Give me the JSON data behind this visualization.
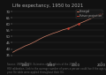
{
  "title": "Life expectancy, 1950 to 2021",
  "ylim": [
    30,
    72
  ],
  "xlim": [
    1950,
    2022
  ],
  "xticks": [
    1960,
    1980,
    2000,
    2020
  ],
  "yticks": [
    35,
    40,
    45,
    50,
    55,
    60,
    65,
    70
  ],
  "background_color": "#111111",
  "plot_bg_color": "#111111",
  "line_color": "#d4826a",
  "dot_color": "#c0392b",
  "grid_color": "#555555",
  "years": [
    1950,
    1951,
    1952,
    1953,
    1954,
    1955,
    1956,
    1957,
    1958,
    1959,
    1960,
    1961,
    1962,
    1963,
    1964,
    1965,
    1966,
    1967,
    1968,
    1969,
    1970,
    1971,
    1972,
    1973,
    1974,
    1975,
    1976,
    1977,
    1978,
    1979,
    1980,
    1981,
    1982,
    1983,
    1984,
    1985,
    1986,
    1987,
    1988,
    1989,
    1990,
    1991,
    1992,
    1993,
    1994,
    1995,
    1996,
    1997,
    1998,
    1999,
    2000,
    2001,
    2002,
    2003,
    2004,
    2005,
    2006,
    2007,
    2008,
    2009,
    2010,
    2011,
    2012,
    2013,
    2014,
    2015,
    2016,
    2017,
    2018,
    2019,
    2020,
    2021
  ],
  "life_exp": [
    37.4,
    37.9,
    38.5,
    39.0,
    39.5,
    40.0,
    40.5,
    41.0,
    41.5,
    42.0,
    42.5,
    42.9,
    43.3,
    43.7,
    44.1,
    44.6,
    45.1,
    45.6,
    46.1,
    46.7,
    47.2,
    47.8,
    48.3,
    48.8,
    49.3,
    49.8,
    50.2,
    50.6,
    51.0,
    51.4,
    51.8,
    52.2,
    52.6,
    52.9,
    53.2,
    53.5,
    53.9,
    54.3,
    54.7,
    55.1,
    55.5,
    55.7,
    56.0,
    56.2,
    56.5,
    56.9,
    57.3,
    57.7,
    58.2,
    58.6,
    59.1,
    59.6,
    60.0,
    60.5,
    61.0,
    61.4,
    61.8,
    62.2,
    62.7,
    63.1,
    63.6,
    64.0,
    64.5,
    65.0,
    65.5,
    66.0,
    66.5,
    67.0,
    67.4,
    67.7,
    67.3,
    68.0
  ],
  "legend_entries": [
    {
      "label": "Senegal",
      "color": "#d4826a"
    },
    {
      "label": "Future projection",
      "color": "#c0392b"
    }
  ],
  "text_color": "#aaaaaa",
  "title_fontsize": 3.8,
  "tick_fontsize": 2.8,
  "footnote_color": "#666666",
  "footnote_fontsize": 1.9,
  "footnote": "Source: UNPD (2019). Estimates of the effects of the 2019\nHIV calibration. Link to the average number of years a person could live if the age-specific\nyear life table were applied throughout their life."
}
